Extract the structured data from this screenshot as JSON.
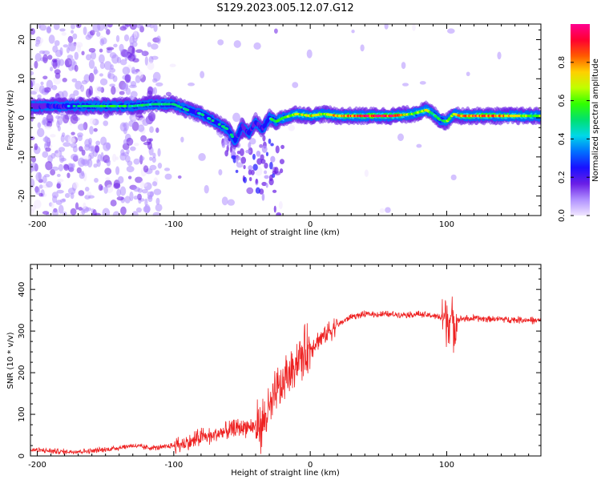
{
  "figure": {
    "title": "S129.2023.005.12.07.G12"
  },
  "chart_data": [
    {
      "type": "heatmap",
      "xlabel": "Height of straight line (km)",
      "ylabel": "Frequency (Hz)",
      "xlim": [
        -205,
        169
      ],
      "ylim": [
        -25,
        24
      ],
      "x_ticks": [
        -200,
        -100,
        0,
        100
      ],
      "y_ticks": [
        20,
        10,
        0,
        -10,
        -20
      ],
      "colorbar": {
        "label": "Normalized spectral amplitude",
        "range": [
          0.0,
          1.0
        ],
        "ticks": [
          0.0,
          0.2,
          0.4,
          0.6,
          0.8
        ],
        "colormap": [
          "#f0e6ff",
          "#b090ff",
          "#6a1ee6",
          "#1a10ff",
          "#0070ff",
          "#00d8e8",
          "#00e070",
          "#30ff00",
          "#c0ff00",
          "#ffd000",
          "#ff5a00",
          "#ff0030",
          "#ff0090"
        ]
      },
      "ridge": {
        "x": [
          -205,
          -190,
          -175,
          -160,
          -145,
          -130,
          -115,
          -100,
          -90,
          -80,
          -70,
          -60,
          -55,
          -50,
          -45,
          -40,
          -35,
          -30,
          -25,
          -20,
          -10,
          0,
          10,
          20,
          40,
          60,
          75,
          85,
          90,
          95,
          100,
          105,
          110,
          130,
          169
        ],
        "y": [
          3,
          3,
          3,
          3,
          3,
          3,
          3.5,
          3.5,
          2,
          1,
          -1,
          -3,
          -6,
          -2,
          -4,
          -1,
          -3,
          0,
          -1,
          0,
          1,
          0.5,
          1,
          0.5,
          0.5,
          0.5,
          1,
          2,
          1,
          -0.5,
          -1,
          1,
          0.5,
          0.5,
          0.5
        ],
        "amplitude": [
          0.3,
          0.35,
          0.45,
          0.5,
          0.55,
          0.5,
          0.5,
          0.5,
          0.45,
          0.45,
          0.45,
          0.5,
          0.45,
          0.35,
          0.35,
          0.35,
          0.35,
          0.5,
          0.55,
          0.6,
          0.7,
          0.75,
          0.7,
          0.8,
          0.95,
          0.95,
          0.6,
          0.7,
          0.55,
          0.5,
          0.6,
          0.6,
          0.85,
          0.9,
          0.6
        ]
      }
    },
    {
      "type": "line",
      "xlabel": "Height of straight line (km)",
      "ylabel": "SNR (10 * v/v)",
      "xlim": [
        -205,
        169
      ],
      "ylim": [
        0,
        460
      ],
      "x_ticks": [
        -200,
        -100,
        0,
        100
      ],
      "y_ticks": [
        0,
        100,
        200,
        300,
        400
      ],
      "series": [
        {
          "color": "#ee2222",
          "x": [
            -205,
            -180,
            -160,
            -150,
            -140,
            -130,
            -120,
            -110,
            -100,
            -90,
            -80,
            -70,
            -60,
            -50,
            -40,
            -35,
            -30,
            -25,
            -20,
            -15,
            -10,
            0,
            10,
            20,
            30,
            40,
            60,
            80,
            95,
            100,
            102,
            105,
            110,
            130,
            169
          ],
          "y": [
            15,
            10,
            12,
            15,
            20,
            25,
            20,
            20,
            25,
            30,
            45,
            50,
            60,
            70,
            70,
            80,
            110,
            150,
            170,
            200,
            230,
            260,
            290,
            315,
            335,
            340,
            340,
            340,
            335,
            330,
            330,
            320,
            330,
            330,
            325
          ]
        }
      ]
    }
  ]
}
